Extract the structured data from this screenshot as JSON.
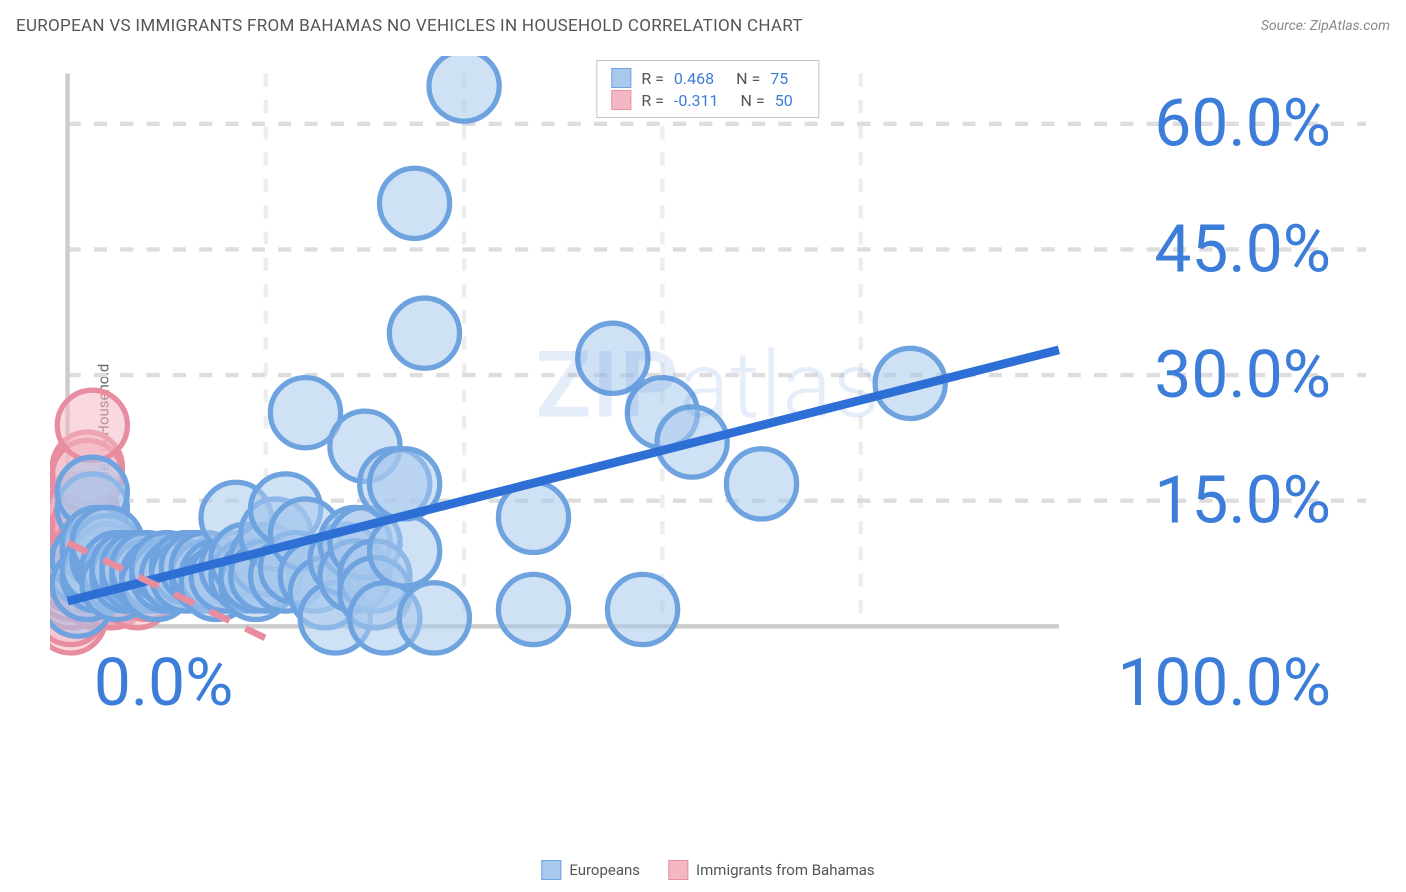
{
  "header": {
    "title": "EUROPEAN VS IMMIGRANTS FROM BAHAMAS NO VEHICLES IN HOUSEHOLD CORRELATION CHART",
    "source": "Source: ZipAtlas.com"
  },
  "chart": {
    "type": "scatter",
    "ylabel": "No Vehicles in Household",
    "xlim": [
      0,
      100
    ],
    "ylim": [
      0,
      66
    ],
    "xtick_labels": [
      "0.0%",
      "100.0%"
    ],
    "ytick_values": [
      15,
      30,
      45,
      60
    ],
    "ytick_labels": [
      "15.0%",
      "30.0%",
      "45.0%",
      "60.0%"
    ],
    "background_color": "#ffffff",
    "grid_color": "#dddddd",
    "axis_color": "#cccccc",
    "tick_label_color": "#3b7dd8",
    "label_color": "#666666",
    "label_fontsize": 15,
    "tick_fontsize": 15,
    "watermark_text_bold": "ZIP",
    "watermark_text_light": "atlas",
    "watermark_color": "#3b7dd8",
    "watermark_opacity": 0.13
  },
  "series": {
    "europeans": {
      "label": "Europeans",
      "color_fill": "#a8c8ec",
      "color_stroke": "#6ea3e0",
      "fill_opacity": 0.55,
      "marker_radius": 8,
      "R": "0.468",
      "N": "75",
      "trend": {
        "x1": 0,
        "y1": 3.0,
        "x2": 100,
        "y2": 33.0,
        "color": "#2e6fd6",
        "width": 2
      },
      "points": [
        [
          1,
          3
        ],
        [
          1.5,
          7
        ],
        [
          2,
          8
        ],
        [
          2,
          5
        ],
        [
          2.5,
          14
        ],
        [
          2.5,
          16
        ],
        [
          3,
          9
        ],
        [
          3,
          10
        ],
        [
          3,
          6
        ],
        [
          3,
          7
        ],
        [
          4,
          8
        ],
        [
          4,
          9
        ],
        [
          4,
          10
        ],
        [
          5,
          6
        ],
        [
          5,
          7
        ],
        [
          5,
          5
        ],
        [
          6,
          6
        ],
        [
          6,
          7
        ],
        [
          7,
          6
        ],
        [
          7,
          7
        ],
        [
          8,
          6
        ],
        [
          8,
          7
        ],
        [
          9,
          6
        ],
        [
          9,
          5
        ],
        [
          10,
          6
        ],
        [
          10,
          7
        ],
        [
          11,
          6
        ],
        [
          12,
          7
        ],
        [
          12,
          6
        ],
        [
          13,
          7
        ],
        [
          14,
          6
        ],
        [
          14,
          7
        ],
        [
          15,
          6
        ],
        [
          15,
          5
        ],
        [
          16,
          6
        ],
        [
          17,
          7
        ],
        [
          17,
          13
        ],
        [
          18,
          6
        ],
        [
          18,
          8
        ],
        [
          19,
          5
        ],
        [
          19,
          6
        ],
        [
          20,
          8
        ],
        [
          20,
          6
        ],
        [
          21,
          11
        ],
        [
          22,
          6
        ],
        [
          22,
          14
        ],
        [
          23,
          7
        ],
        [
          24,
          11
        ],
        [
          24,
          25.5
        ],
        [
          25,
          6
        ],
        [
          26,
          4
        ],
        [
          27,
          1
        ],
        [
          28,
          8
        ],
        [
          29,
          10
        ],
        [
          29,
          6
        ],
        [
          30,
          10
        ],
        [
          30,
          21.5
        ],
        [
          31,
          6
        ],
        [
          31,
          4
        ],
        [
          32,
          1
        ],
        [
          33,
          17
        ],
        [
          34,
          9
        ],
        [
          34,
          17
        ],
        [
          35,
          50.5
        ],
        [
          36,
          35
        ],
        [
          37,
          1
        ],
        [
          40,
          64.5
        ],
        [
          47,
          2
        ],
        [
          47,
          13
        ],
        [
          55,
          32
        ],
        [
          58,
          2
        ],
        [
          60,
          25.5
        ],
        [
          63,
          22
        ],
        [
          70,
          17
        ],
        [
          85,
          29
        ]
      ]
    },
    "bahamas": {
      "label": "Immigrants from Bahamas",
      "color_fill": "#f4b8c4",
      "color_stroke": "#e88ca0",
      "fill_opacity": 0.55,
      "marker_radius": 8,
      "R": "-0.311",
      "N": "50",
      "trend": {
        "x1": 0,
        "y1": 10.0,
        "x2": 21,
        "y2": -2.0,
        "color": "#e88ca0",
        "width": 1.5,
        "dash": "5,4"
      },
      "points": [
        [
          0.3,
          1
        ],
        [
          0.3,
          2
        ],
        [
          0.4,
          4
        ],
        [
          0.4,
          5
        ],
        [
          0.5,
          6
        ],
        [
          0.5,
          7
        ],
        [
          0.5,
          8
        ],
        [
          0.6,
          9
        ],
        [
          0.6,
          10
        ],
        [
          0.7,
          11
        ],
        [
          0.7,
          12
        ],
        [
          0.8,
          13
        ],
        [
          0.8,
          14
        ],
        [
          0.8,
          10
        ],
        [
          0.9,
          11
        ],
        [
          0.9,
          12
        ],
        [
          1,
          9
        ],
        [
          1,
          10
        ],
        [
          1,
          11
        ],
        [
          1.2,
          8
        ],
        [
          1.2,
          9
        ],
        [
          1.3,
          12
        ],
        [
          1.3,
          13
        ],
        [
          1.4,
          10
        ],
        [
          1.5,
          14
        ],
        [
          1.5,
          8
        ],
        [
          1.6,
          9
        ],
        [
          1.8,
          7
        ],
        [
          1.8,
          10
        ],
        [
          2,
          12
        ],
        [
          2,
          8
        ],
        [
          2,
          19
        ],
        [
          2,
          18
        ],
        [
          2.2,
          9
        ],
        [
          2.5,
          24
        ],
        [
          2.5,
          7
        ],
        [
          2.8,
          8
        ],
        [
          3,
          4
        ],
        [
          3,
          9
        ],
        [
          3,
          6
        ],
        [
          3.5,
          5
        ],
        [
          3.5,
          7
        ],
        [
          4,
          5
        ],
        [
          4,
          6
        ],
        [
          4.5,
          4
        ],
        [
          5,
          6
        ],
        [
          5,
          7
        ],
        [
          6,
          5
        ],
        [
          7,
          4
        ],
        [
          8,
          5
        ]
      ]
    }
  },
  "legend": {
    "stats_rows": [
      {
        "series": "europeans"
      },
      {
        "series": "bahamas"
      }
    ],
    "r_label": "R =",
    "n_label": "N ="
  }
}
